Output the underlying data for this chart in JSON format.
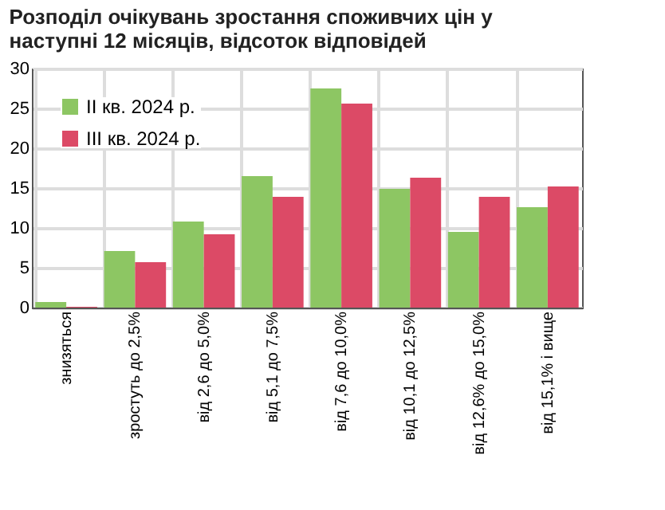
{
  "chart_data": {
    "type": "bar",
    "title": [
      "Розподіл очікувань зростання споживчих цін у",
      "наступні 12 місяців, відсоток відповідей"
    ],
    "categories": [
      "знизяться",
      "зростуть до 2,5%",
      "від 2,6 до 5,0%",
      "від 5,1 до 7,5%",
      "від 7,6 до 10,0%",
      "від 10,1 до 12,5%",
      "від 12,6% до 15,0%",
      "від 15,1% і вище"
    ],
    "series": [
      {
        "name": "II кв. 2024 р.",
        "color": "#8dc663",
        "values": [
          0.7,
          7.1,
          10.8,
          16.5,
          27.5,
          14.9,
          9.5,
          12.6
        ]
      },
      {
        "name": "III кв. 2024 р.",
        "color": "#dc4a66",
        "values": [
          0.1,
          5.7,
          9.2,
          13.9,
          25.6,
          16.3,
          13.9,
          15.2
        ]
      }
    ],
    "ylim": [
      0,
      30
    ],
    "yticks": [
      0,
      5,
      10,
      15,
      20,
      25,
      30
    ],
    "grid": true,
    "legend": "top left"
  }
}
